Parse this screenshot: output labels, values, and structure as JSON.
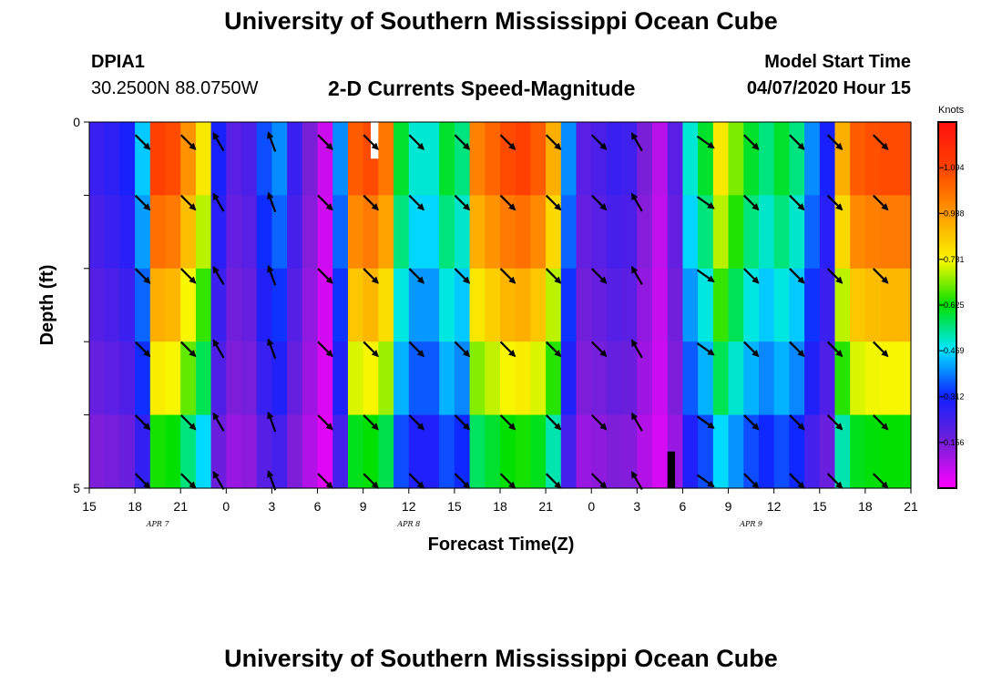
{
  "header": {
    "title": "University of Southern Mississippi Ocean Cube",
    "footer_title": "University of Southern Mississippi Ocean Cube",
    "station_id": "DPIA1",
    "station_coords": "30.2500N 88.0750W",
    "subtitle": "2-D Currents Speed-Magnitude",
    "model_start_label": "Model Start Time",
    "model_start_value": "04/07/2020 Hour 15"
  },
  "chart_data": {
    "type": "heatmap",
    "title": "2-D Currents Speed-Magnitude",
    "xlabel": "Forecast Time(Z)",
    "ylabel": "Depth (ft)",
    "x_unit": "hours since 04/07/2020 15Z",
    "x_range": [
      0,
      54
    ],
    "y_range": [
      0,
      5
    ],
    "x_ticks": [
      {
        "h": 0,
        "label": "15"
      },
      {
        "h": 3,
        "label": "18"
      },
      {
        "h": 6,
        "label": "21"
      },
      {
        "h": 9,
        "label": "0"
      },
      {
        "h": 12,
        "label": "3"
      },
      {
        "h": 15,
        "label": "6"
      },
      {
        "h": 18,
        "label": "9"
      },
      {
        "h": 21,
        "label": "12"
      },
      {
        "h": 24,
        "label": "15"
      },
      {
        "h": 27,
        "label": "18"
      },
      {
        "h": 30,
        "label": "21"
      },
      {
        "h": 33,
        "label": "0"
      },
      {
        "h": 36,
        "label": "3"
      },
      {
        "h": 39,
        "label": "6"
      },
      {
        "h": 42,
        "label": "9"
      },
      {
        "h": 45,
        "label": "12"
      },
      {
        "h": 48,
        "label": "15"
      },
      {
        "h": 51,
        "label": "18"
      },
      {
        "h": 54,
        "label": "21"
      }
    ],
    "y_ticks": [
      {
        "v": 0,
        "label": "0"
      },
      {
        "v": 5,
        "label": "5"
      }
    ],
    "date_labels": [
      {
        "h": 4.5,
        "label": "APR 7"
      },
      {
        "h": 21,
        "label": "APR 8"
      },
      {
        "h": 43.5,
        "label": "APR 9"
      }
    ],
    "colorbar": {
      "unit": "Knots",
      "min": 0,
      "max": 1.25,
      "ticks": [
        "1.094",
        "0.938",
        "0.781",
        "0.625",
        "0.469",
        "0.312",
        "0.156"
      ],
      "tick_values": [
        1.094,
        0.938,
        0.781,
        0.625,
        0.469,
        0.312,
        0.156
      ]
    },
    "depth_bins": [
      0.5,
      1.5,
      2.5,
      3.5,
      4.5
    ],
    "surface_speed": [
      0.25,
      0.27,
      0.3,
      0.45,
      1.1,
      1.08,
      0.95,
      0.8,
      0.3,
      0.2,
      0.22,
      0.35,
      0.4,
      0.25,
      0.15,
      0.06,
      0.4,
      1.05,
      1.08,
      1.0,
      0.6,
      0.5,
      0.5,
      0.6,
      0.55,
      0.98,
      1.03,
      1.08,
      1.1,
      1.05,
      0.9,
      0.4,
      0.2,
      0.22,
      0.25,
      0.24,
      0.15,
      0.08,
      0.2,
      0.5,
      0.6,
      0.8,
      0.7,
      0.6,
      0.55,
      0.6,
      0.55,
      0.4,
      0.3,
      0.9,
      1.05,
      1.07,
      1.08,
      1.08
    ],
    "depth_factors": [
      1.0,
      0.92,
      0.82,
      0.72,
      0.58
    ],
    "special_cells": [
      {
        "h0": 18.5,
        "h1": 19,
        "d0": 0,
        "d1": 0.5,
        "color": "#ffffff"
      },
      {
        "h0": 38,
        "h1": 38.5,
        "d0": 4.5,
        "d1": 5,
        "color": "#000000"
      }
    ],
    "vectors": {
      "times": [
        3.5,
        6.5,
        8.5,
        12,
        15.5,
        18.5,
        21.5,
        24.5,
        27.5,
        30.5,
        33.5,
        36,
        40.5,
        43.5,
        46.5,
        49,
        52
      ],
      "depths": [
        0.1,
        1.1,
        2.1,
        3.1,
        4.1,
        4.9
      ],
      "directions_deg": [
        135,
        135,
        330,
        340,
        135,
        135,
        135,
        135,
        135,
        135,
        135,
        330,
        125,
        135,
        135,
        135,
        135
      ]
    }
  }
}
